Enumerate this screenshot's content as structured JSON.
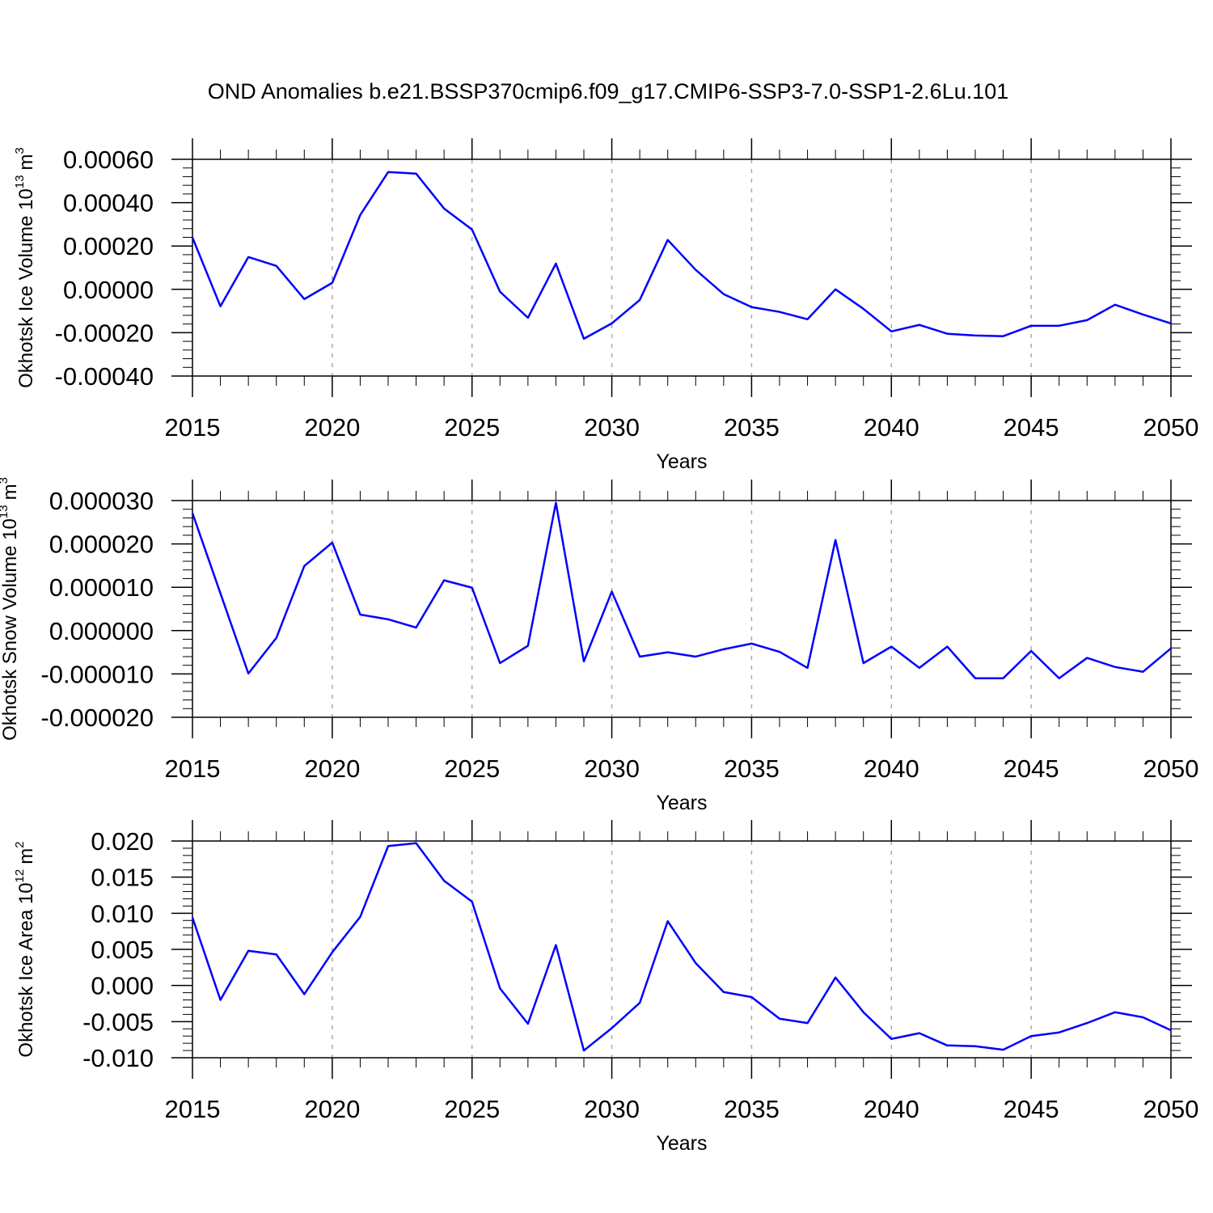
{
  "chart_data": [
    {
      "type": "line",
      "title": "OND Anomalies b.e21.BSSP370cmip6.f09_g17.CMIP6-SSP3-7.0-SSP1-2.6Lu.101",
      "xlabel": "Years",
      "ylabel": {
        "text": "Okhotsk Ice Volume 10",
        "exponent": "13",
        "unit": "m",
        "unit_exponent": "3"
      },
      "x": [
        2015,
        2016,
        2017,
        2018,
        2019,
        2020,
        2021,
        2022,
        2023,
        2024,
        2025,
        2026,
        2027,
        2028,
        2029,
        2030,
        2031,
        2032,
        2033,
        2034,
        2035,
        2036,
        2037,
        2038,
        2039,
        2040,
        2041,
        2042,
        2043,
        2044,
        2045,
        2046,
        2047,
        2048,
        2049,
        2050
      ],
      "series": [
        {
          "color": "#0000ff",
          "values": [
            0.000239,
            -7.8e-05,
            0.000149,
            0.000108,
            -4.5e-05,
            3e-05,
            0.000343,
            0.000541,
            0.000534,
            0.000373,
            0.000276,
            -1.1e-05,
            -0.000131,
            0.000119,
            -0.000228,
            -0.000157,
            -4.9e-05,
            0.000228,
            9e-05,
            -2.2e-05,
            -8.2e-05,
            -0.000104,
            -0.000138,
            0.0,
            -9e-05,
            -0.000194,
            -0.000164,
            -0.000205,
            -0.000213,
            -0.000216,
            -0.000168,
            -0.000168,
            -0.000142,
            -7.1e-05,
            -0.000116,
            -0.000157
          ]
        }
      ],
      "xlim": [
        2015,
        2050
      ],
      "xticks": [
        2015,
        2020,
        2025,
        2030,
        2035,
        2040,
        2045,
        2050
      ],
      "ylim": [
        -0.0004,
        0.0006
      ],
      "yticks": [
        {
          "value": -0.0004,
          "label": "-0.00040"
        },
        {
          "value": -0.0002,
          "label": "-0.00020"
        },
        {
          "value": 0,
          "label": "0.00000"
        },
        {
          "value": 0.0002,
          "label": "0.00020"
        },
        {
          "value": 0.0004,
          "label": "0.00040"
        },
        {
          "value": 0.0006,
          "label": "0.00060"
        }
      ],
      "grid": "x"
    },
    {
      "type": "line",
      "xlabel": "Years",
      "ylabel": {
        "text": "Okhotsk Snow Volume 10",
        "exponent": "13",
        "unit": "m",
        "unit_exponent": "3"
      },
      "x": [
        2015,
        2016,
        2017,
        2018,
        2019,
        2020,
        2021,
        2022,
        2023,
        2024,
        2025,
        2026,
        2027,
        2028,
        2029,
        2030,
        2031,
        2032,
        2033,
        2034,
        2035,
        2036,
        2037,
        2038,
        2039,
        2040,
        2041,
        2042,
        2043,
        2044,
        2045,
        2046,
        2047,
        2048,
        2049,
        2050
      ],
      "series": [
        {
          "color": "#0000ff",
          "values": [
            2.71e-05,
            8.6e-06,
            -9.9e-06,
            -1.7e-06,
            1.49e-05,
            2.03e-05,
            3.7e-06,
            2.6e-06,
            7e-07,
            1.16e-05,
            9.9e-06,
            -7.5e-06,
            -3.5e-06,
            2.95e-05,
            -7.1e-06,
            9e-06,
            -6e-06,
            -5e-06,
            -6e-06,
            -4.3e-06,
            -3e-06,
            -4.9e-06,
            -8.6e-06,
            2.09e-05,
            -7.5e-06,
            -3.7e-06,
            -8.6e-06,
            -3.7e-06,
            -1.1e-05,
            -1.1e-05,
            -4.7e-06,
            -1.1e-05,
            -6.3e-06,
            -8.4e-06,
            -9.5e-06,
            -4.1e-06
          ]
        }
      ],
      "xlim": [
        2015,
        2050
      ],
      "xticks": [
        2015,
        2020,
        2025,
        2030,
        2035,
        2040,
        2045,
        2050
      ],
      "ylim": [
        -2e-05,
        3e-05
      ],
      "yticks": [
        {
          "value": -2e-05,
          "label": "-0.000020"
        },
        {
          "value": -1e-05,
          "label": "-0.000010"
        },
        {
          "value": 0,
          "label": "0.000000"
        },
        {
          "value": 1e-05,
          "label": "0.000010"
        },
        {
          "value": 2e-05,
          "label": "0.000020"
        },
        {
          "value": 3e-05,
          "label": "0.000030"
        }
      ],
      "grid": "x"
    },
    {
      "type": "line",
      "xlabel": "Years",
      "ylabel": {
        "text": "Okhotsk Ice Area 10",
        "exponent": "12",
        "unit": "m",
        "unit_exponent": "2"
      },
      "x": [
        2015,
        2016,
        2017,
        2018,
        2019,
        2020,
        2021,
        2022,
        2023,
        2024,
        2025,
        2026,
        2027,
        2028,
        2029,
        2030,
        2031,
        2032,
        2033,
        2034,
        2035,
        2036,
        2037,
        2038,
        2039,
        2040,
        2041,
        2042,
        2043,
        2044,
        2045,
        2046,
        2047,
        2048,
        2049,
        2050
      ],
      "series": [
        {
          "color": "#0000ff",
          "values": [
            0.0094,
            -0.002,
            0.0048,
            0.0043,
            -0.0012,
            0.0046,
            0.0095,
            0.0193,
            0.0197,
            0.0145,
            0.0116,
            -0.0004,
            -0.0053,
            0.0056,
            -0.009,
            -0.0059,
            -0.0024,
            0.0089,
            0.0031,
            -0.0009,
            -0.0016,
            -0.0046,
            -0.0052,
            0.0011,
            -0.0037,
            -0.0074,
            -0.0066,
            -0.0083,
            -0.0084,
            -0.0089,
            -0.007,
            -0.0065,
            -0.0052,
            -0.0037,
            -0.0044,
            -0.0062
          ]
        }
      ],
      "xlim": [
        2015,
        2050
      ],
      "xticks": [
        2015,
        2020,
        2025,
        2030,
        2035,
        2040,
        2045,
        2050
      ],
      "ylim": [
        -0.01,
        0.02
      ],
      "yticks": [
        {
          "value": -0.01,
          "label": "-0.010"
        },
        {
          "value": -0.005,
          "label": "-0.005"
        },
        {
          "value": 0,
          "label": "0.000"
        },
        {
          "value": 0.005,
          "label": "0.005"
        },
        {
          "value": 0.01,
          "label": "0.010"
        },
        {
          "value": 0.015,
          "label": "0.015"
        },
        {
          "value": 0.02,
          "label": "0.020"
        }
      ],
      "grid": "x"
    }
  ]
}
